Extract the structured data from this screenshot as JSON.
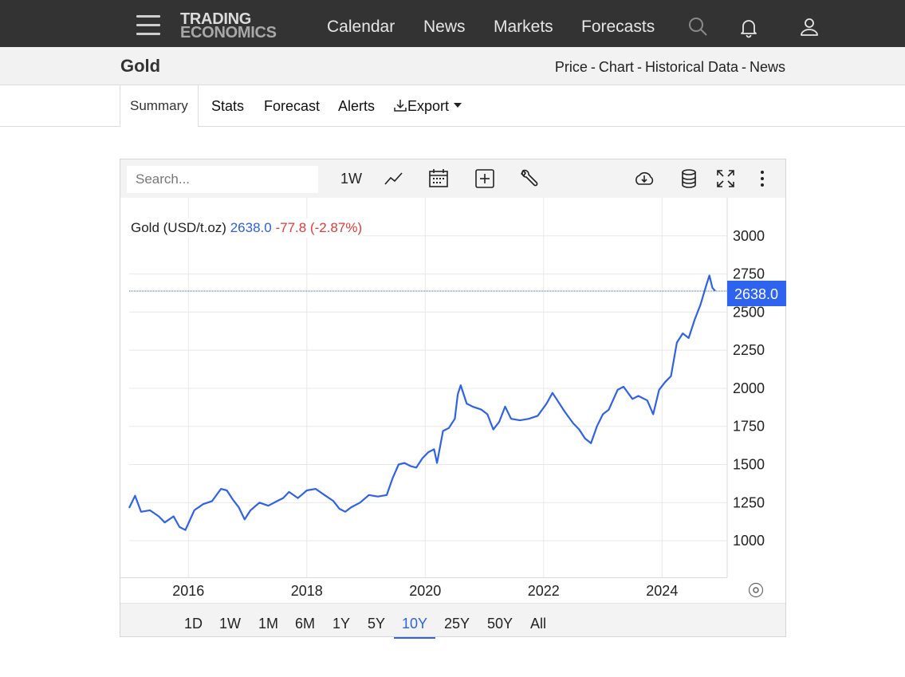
{
  "nav": {
    "logo_line1": "TRADING",
    "logo_line2": "ECONOMICS",
    "links": [
      "Calendar",
      "News",
      "Markets",
      "Forecasts"
    ],
    "icons": [
      "menu-icon",
      "search-icon",
      "bell-icon",
      "user-icon"
    ]
  },
  "title_bar": {
    "title": "Gold",
    "links": [
      "Price",
      "Chart",
      "Historical Data",
      "News"
    ],
    "separator": "-"
  },
  "tabs": {
    "items": [
      "Summary",
      "Stats",
      "Forecast",
      "Alerts"
    ],
    "export_label": "Export",
    "active": "Summary"
  },
  "toolbar": {
    "search_placeholder": "Search...",
    "interval": "1W",
    "icons": [
      "line-chart-icon",
      "calendar-icon",
      "add-icon",
      "wrench-icon",
      "cloud-download-icon",
      "database-icon",
      "fullscreen-icon",
      "more-icon"
    ]
  },
  "legend": {
    "name": "Gold (USD/t.oz)",
    "price": "2638.0",
    "change": "-77.8 (-2.87%)"
  },
  "price_tag": "2638.0",
  "ranges": [
    "1D",
    "1W",
    "1M",
    "6M",
    "1Y",
    "5Y",
    "10Y",
    "25Y",
    "50Y",
    "All"
  ],
  "active_range": "10Y",
  "colors": {
    "line": "#2f62e8",
    "positive": "#2f62e8",
    "negative": "#e03b3b",
    "nav_bg": "#333333"
  },
  "chart_data": {
    "type": "line",
    "series": [
      {
        "x": [
          2015.0,
          2015.1,
          2015.2,
          2015.35,
          2015.5,
          2015.6,
          2015.75,
          2015.85,
          2015.95,
          2016.1,
          2016.25,
          2016.4,
          2016.55,
          2016.65,
          2016.75,
          2016.85,
          2016.95,
          2017.05,
          2017.2,
          2017.35,
          2017.5,
          2017.6,
          2017.7,
          2017.85,
          2018.0,
          2018.15,
          2018.3,
          2018.45,
          2018.55,
          2018.65,
          2018.75,
          2018.9,
          2019.05,
          2019.2,
          2019.35,
          2019.45,
          2019.55,
          2019.65,
          2019.75,
          2019.85,
          2019.95,
          2020.05,
          2020.15,
          2020.2,
          2020.3,
          2020.4,
          2020.5,
          2020.55,
          2020.6,
          2020.7,
          2020.8,
          2020.95,
          2021.05,
          2021.15,
          2021.25,
          2021.35,
          2021.45,
          2021.6,
          2021.75,
          2021.9,
          2022.05,
          2022.15,
          2022.25,
          2022.35,
          2022.5,
          2022.6,
          2022.7,
          2022.8,
          2022.9,
          2023.0,
          2023.1,
          2023.25,
          2023.35,
          2023.5,
          2023.6,
          2023.75,
          2023.85,
          2023.95,
          2024.05,
          2024.15,
          2024.25,
          2024.35,
          2024.45,
          2024.55,
          2024.65,
          2024.75,
          2024.8,
          2024.85,
          2024.9
        ],
        "y": [
          1215,
          1295,
          1190,
          1200,
          1160,
          1120,
          1160,
          1090,
          1070,
          1200,
          1240,
          1260,
          1340,
          1330,
          1270,
          1220,
          1140,
          1200,
          1250,
          1230,
          1260,
          1280,
          1320,
          1280,
          1330,
          1340,
          1300,
          1260,
          1210,
          1190,
          1220,
          1250,
          1300,
          1290,
          1300,
          1410,
          1500,
          1510,
          1490,
          1480,
          1540,
          1580,
          1600,
          1510,
          1720,
          1740,
          1800,
          1960,
          2020,
          1900,
          1880,
          1860,
          1830,
          1730,
          1780,
          1880,
          1800,
          1790,
          1800,
          1820,
          1900,
          1970,
          1910,
          1850,
          1770,
          1730,
          1670,
          1640,
          1750,
          1830,
          1860,
          1990,
          2010,
          1930,
          1950,
          1920,
          1830,
          1990,
          2040,
          2080,
          2300,
          2360,
          2330,
          2450,
          2550,
          2680,
          2740,
          2660,
          2638
        ]
      }
    ],
    "xlim": [
      2015.0,
      2025.1
    ],
    "ylim": [
      760,
      3250
    ],
    "x_ticks": [
      "2016",
      "2018",
      "2020",
      "2022",
      "2024"
    ],
    "y_ticks": [
      "3000",
      "2750",
      "2500",
      "2250",
      "2000",
      "1750",
      "1500",
      "1250",
      "1000"
    ],
    "last_value": 2638.0,
    "grid": true
  }
}
